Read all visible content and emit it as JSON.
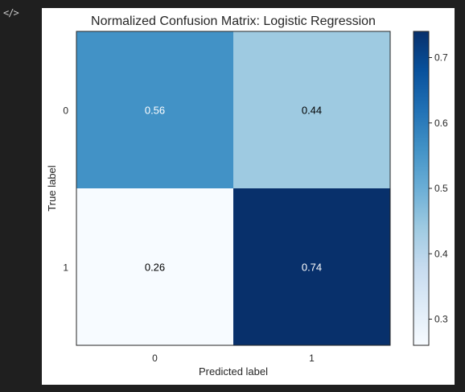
{
  "toolbar": {
    "code_icon_label": "</>",
    "code_icon": "code-icon"
  },
  "chart_data": {
    "type": "heatmap",
    "title": "Normalized Confusion Matrix: Logistic Regression",
    "xlabel": "Predicted label",
    "ylabel": "True label",
    "x_categories": [
      "0",
      "1"
    ],
    "y_categories": [
      "0",
      "1"
    ],
    "values": [
      [
        0.56,
        0.44
      ],
      [
        0.26,
        0.74
      ]
    ],
    "value_labels": [
      [
        "0.56",
        "0.44"
      ],
      [
        "0.26",
        "0.74"
      ]
    ],
    "colormap": "Blues",
    "colorbar": {
      "vmin": 0.26,
      "vmax": 0.74,
      "ticks": [
        0.3,
        0.4,
        0.5,
        0.6,
        0.7
      ],
      "tick_labels": [
        "0.3",
        "0.4",
        "0.5",
        "0.6",
        "0.7"
      ]
    },
    "grid": false
  }
}
